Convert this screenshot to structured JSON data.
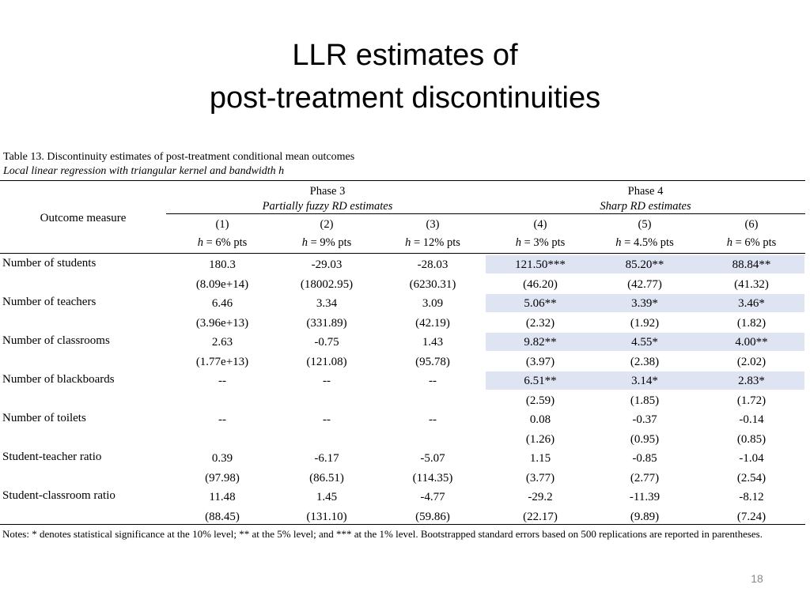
{
  "slide": {
    "title_line1": "LLR estimates of",
    "title_line2": "post-treatment discontinuities",
    "page_number": "18"
  },
  "table": {
    "caption": "Table 13. Discontinuity estimates of post-treatment conditional mean outcomes",
    "subcaption": "Local linear regression with triangular kernel and bandwidth h",
    "outcome_header": "Outcome measure",
    "phase3": {
      "label": "Phase 3",
      "sublabel": "Partially fuzzy RD estimates"
    },
    "phase4": {
      "label": "Phase 4",
      "sublabel": "Sharp RD estimates"
    },
    "columns": [
      {
        "num": "(1)",
        "bandwidth": "h = 6% pts"
      },
      {
        "num": "(2)",
        "bandwidth": "h = 9% pts"
      },
      {
        "num": "(3)",
        "bandwidth": "h = 12% pts"
      },
      {
        "num": "(4)",
        "bandwidth": "h = 3% pts"
      },
      {
        "num": "(5)",
        "bandwidth": "h = 4.5% pts"
      },
      {
        "num": "(6)",
        "bandwidth": "h = 6% pts"
      }
    ],
    "rows": [
      {
        "label": "Number of students",
        "estimates": [
          "180.3",
          "-29.03",
          "-28.03",
          "121.50***",
          "85.20**",
          "88.84**"
        ],
        "std_errors": [
          "(8.09e+14)",
          "(18002.95)",
          "(6230.31)",
          "(46.20)",
          "(42.77)",
          "(41.32)"
        ],
        "highlight_phase4": true
      },
      {
        "label": "Number of teachers",
        "estimates": [
          "6.46",
          "3.34",
          "3.09",
          "5.06**",
          "3.39*",
          "3.46*"
        ],
        "std_errors": [
          "(3.96e+13)",
          "(331.89)",
          "(42.19)",
          "(2.32)",
          "(1.92)",
          "(1.82)"
        ],
        "highlight_phase4": true
      },
      {
        "label": "Number of classrooms",
        "estimates": [
          "2.63",
          "-0.75",
          "1.43",
          "9.82**",
          "4.55*",
          "4.00**"
        ],
        "std_errors": [
          "(1.77e+13)",
          "(121.08)",
          "(95.78)",
          "(3.97)",
          "(2.38)",
          "(2.02)"
        ],
        "highlight_phase4": true
      },
      {
        "label": "Number of blackboards",
        "estimates": [
          "--",
          "--",
          "--",
          "6.51**",
          "3.14*",
          "2.83*"
        ],
        "std_errors": [
          "",
          "",
          "",
          "(2.59)",
          "(1.85)",
          "(1.72)"
        ],
        "highlight_phase4": true
      },
      {
        "label": "Number of toilets",
        "estimates": [
          "--",
          "--",
          "--",
          "0.08",
          "-0.37",
          "-0.14"
        ],
        "std_errors": [
          "",
          "",
          "",
          "(1.26)",
          "(0.95)",
          "(0.85)"
        ],
        "highlight_phase4": false
      },
      {
        "label": "Student-teacher ratio",
        "estimates": [
          "0.39",
          "-6.17",
          "-5.07",
          "1.15",
          "-0.85",
          "-1.04"
        ],
        "std_errors": [
          "(97.98)",
          "(86.51)",
          "(114.35)",
          "(3.77)",
          "(2.77)",
          "(2.54)"
        ],
        "highlight_phase4": false
      },
      {
        "label": "Student-classroom ratio",
        "estimates": [
          "11.48",
          "1.45",
          "-4.77",
          "-29.2",
          "-11.39",
          "-8.12"
        ],
        "std_errors": [
          "(88.45)",
          "(131.10)",
          "(59.86)",
          "(22.17)",
          "(9.89)",
          "(7.24)"
        ],
        "highlight_phase4": false
      }
    ],
    "notes": "Notes: * denotes statistical significance at the 10% level; ** at the 5% level; and *** at the 1% level. Bootstrapped standard errors based on 500 replications are reported in parentheses.",
    "highlight_color": "#dee4f1"
  }
}
